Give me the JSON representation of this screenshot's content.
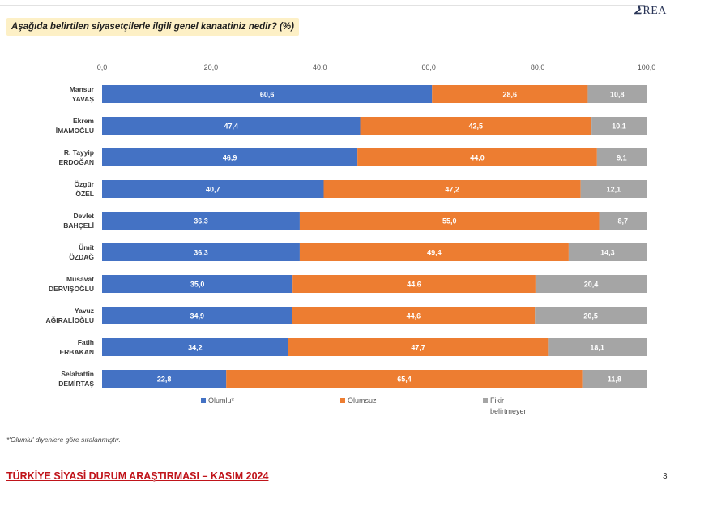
{
  "logo": {
    "mark": "𝛴",
    "text": "REA"
  },
  "question": "Aşağıda belirtilen siyasetçilerle ilgili genel kanaatiniz nedir? (%)",
  "footnote": "*'Olumlu' diyenlere göre sıralanmıştır.",
  "footer": {
    "title": "TÜRKİYE SİYASİ DURUM ARAŞTIRMASI – KASIM 2024",
    "page": "3"
  },
  "colors": {
    "olumlu": "#4472c4",
    "olumsuz": "#ed7d31",
    "fikir": "#a5a5a5"
  },
  "chart_data": {
    "type": "bar",
    "orientation": "horizontal",
    "stacked": true,
    "title": "Aşağıda belirtilen siyasetçilerle ilgili genel kanaatiniz nedir? (%)",
    "xlim": [
      0,
      100
    ],
    "x_ticks": [
      "0,0",
      "20,0",
      "40,0",
      "60,0",
      "80,0",
      "100,0"
    ],
    "legend_position": "bottom",
    "categories": [
      [
        "Mansur",
        "YAVAŞ"
      ],
      [
        "Ekrem",
        "İMAMOĞLU"
      ],
      [
        "R. Tayyip",
        "ERDOĞAN"
      ],
      [
        "Özgür",
        "ÖZEL"
      ],
      [
        "Devlet",
        "BAHÇELİ"
      ],
      [
        "Ümit",
        "ÖZDAĞ"
      ],
      [
        "Müsavat",
        "DERVİŞOĞLU"
      ],
      [
        "Yavuz",
        "AĞIRALİOĞLU"
      ],
      [
        "Fatih",
        "ERBAKAN"
      ],
      [
        "Selahattin",
        "DEMİRTAŞ"
      ]
    ],
    "series": [
      {
        "name": "Olumlu*",
        "color": "#4472c4",
        "values": [
          60.6,
          47.4,
          46.9,
          40.7,
          36.3,
          36.3,
          35.0,
          34.9,
          34.2,
          22.8
        ],
        "labels": [
          "60,6",
          "47,4",
          "46,9",
          "40,7",
          "36,3",
          "36,3",
          "35,0",
          "34,9",
          "34,2",
          "22,8"
        ]
      },
      {
        "name": "Olumsuz",
        "color": "#ed7d31",
        "values": [
          28.6,
          42.5,
          44.0,
          47.2,
          55.0,
          49.4,
          44.6,
          44.6,
          47.7,
          65.4
        ],
        "labels": [
          "28,6",
          "42,5",
          "44,0",
          "47,2",
          "55,0",
          "49,4",
          "44,6",
          "44,6",
          "47,7",
          "65,4"
        ]
      },
      {
        "name": "Fikir belirtmeyen",
        "legend_lines": [
          "Fikir",
          "belirtmeyen"
        ],
        "color": "#a5a5a5",
        "values": [
          10.8,
          10.1,
          9.1,
          12.1,
          8.7,
          14.3,
          20.4,
          20.5,
          18.1,
          11.8
        ],
        "labels": [
          "10,8",
          "10,1",
          "9,1",
          "12,1",
          "8,7",
          "14,3",
          "20,4",
          "20,5",
          "18,1",
          "11,8"
        ]
      }
    ]
  }
}
